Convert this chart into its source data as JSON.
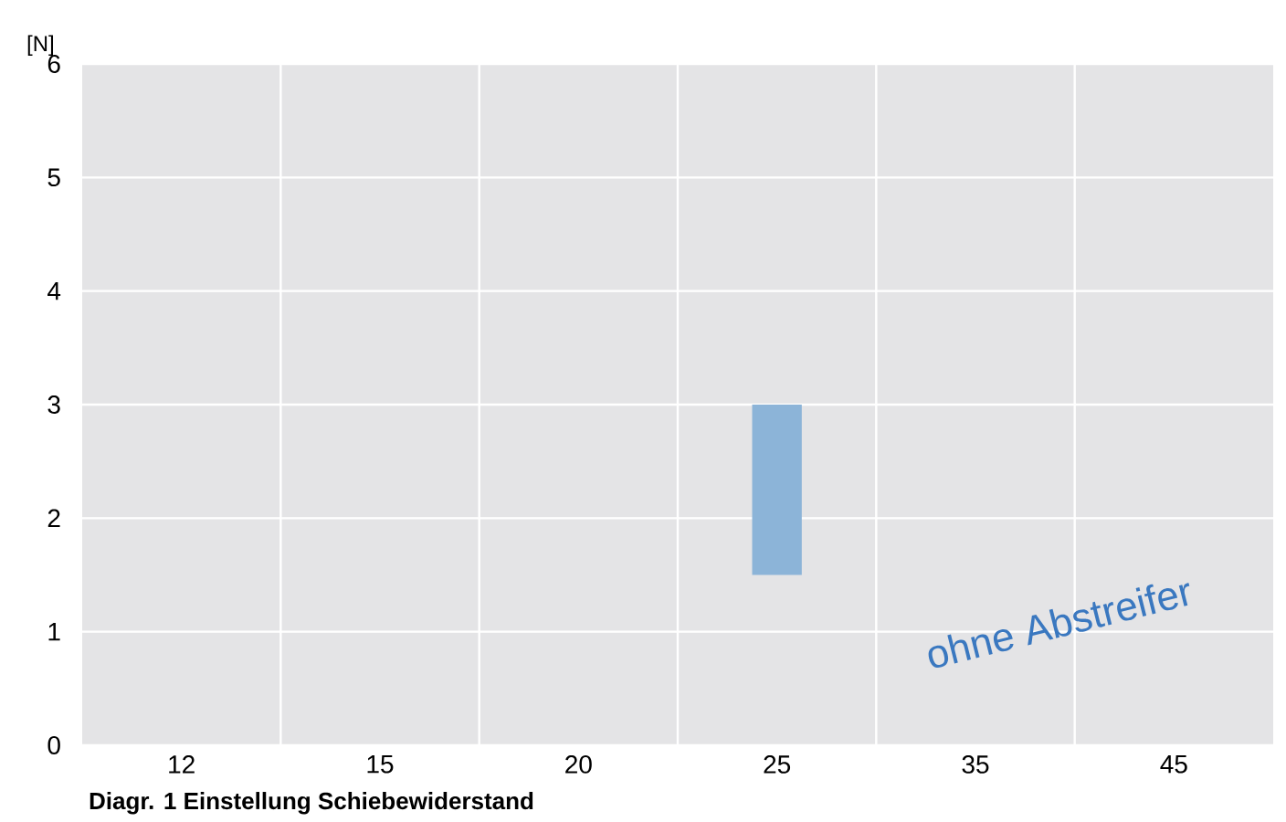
{
  "chart_data": {
    "type": "bar",
    "title": "Diagr. 1 Einstellung Schiebewiderstand",
    "ylabel": "[N]",
    "categories": [
      "12",
      "15",
      "20",
      "25",
      "35",
      "45"
    ],
    "values": [
      null,
      null,
      null,
      1.5,
      null,
      null
    ],
    "base": [
      null,
      null,
      null,
      1.5,
      null,
      null
    ],
    "color": "#8cb4d8",
    "ylim": [
      0,
      6
    ],
    "yticks": [
      0,
      1,
      2,
      3,
      4,
      5,
      6
    ],
    "grid": true,
    "annotations": [
      "ohne Abstreifer"
    ]
  }
}
